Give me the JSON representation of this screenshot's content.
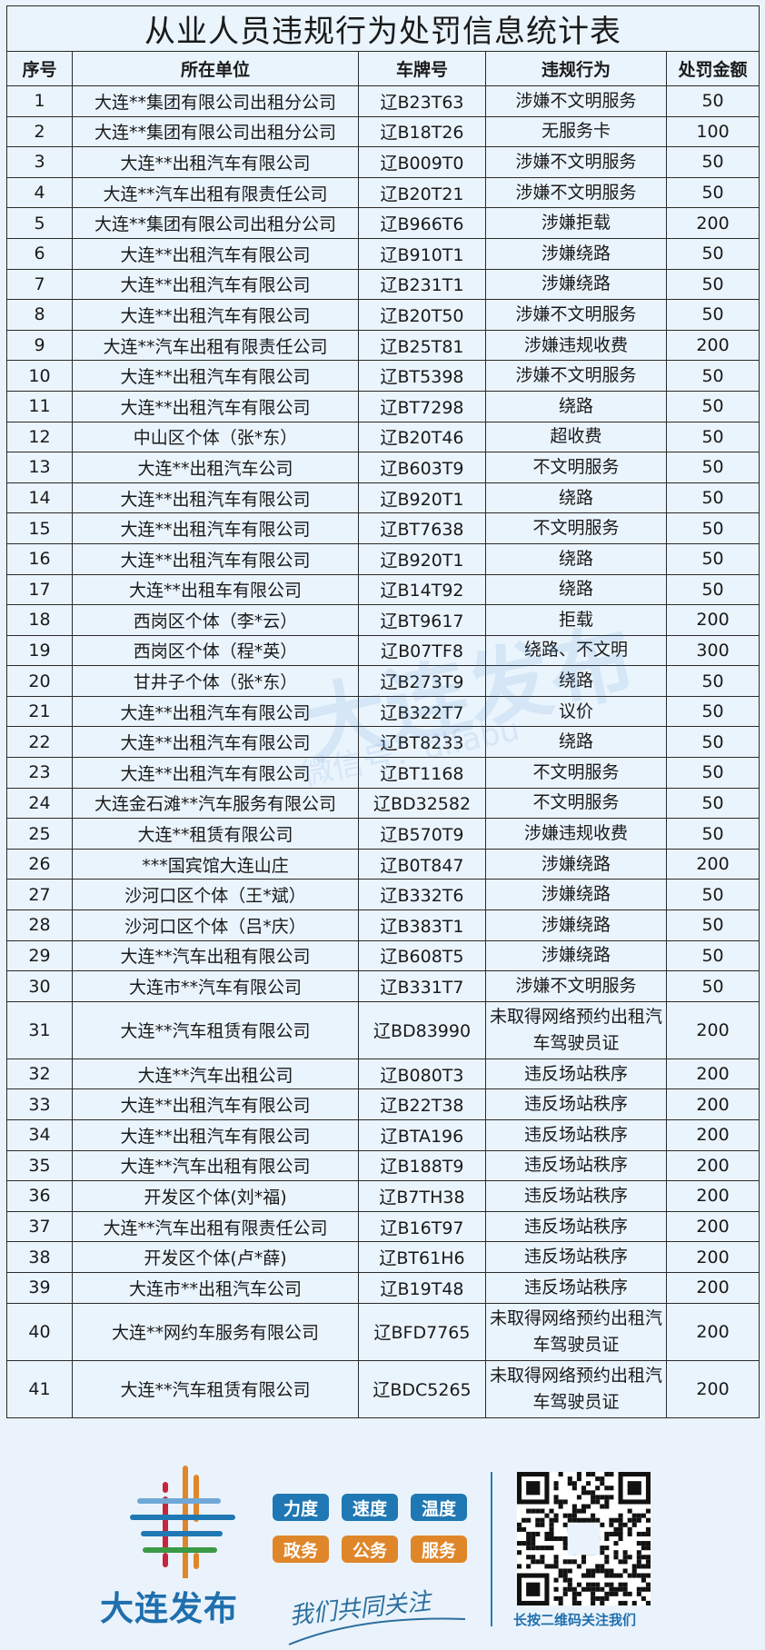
{
  "title": "从业人员违规行为处罚信息统计表",
  "columns": [
    "序号",
    "所在单位",
    "车牌号",
    "违规行为",
    "处罚金额"
  ],
  "rows": [
    [
      "1",
      "大连**集团有限公司出租分公司",
      "辽B23T63",
      "涉嫌不文明服务",
      "50"
    ],
    [
      "2",
      "大连**集团有限公司出租分公司",
      "辽B18T26",
      "无服务卡",
      "100"
    ],
    [
      "3",
      "大连**出租汽车有限公司",
      "辽B009T0",
      "涉嫌不文明服务",
      "50"
    ],
    [
      "4",
      "大连**汽车出租有限责任公司",
      "辽B20T21",
      "涉嫌不文明服务",
      "50"
    ],
    [
      "5",
      "大连**集团有限公司出租分公司",
      "辽B966T6",
      "涉嫌拒载",
      "200"
    ],
    [
      "6",
      "大连**出租汽车有限公司",
      "辽B910T1",
      "涉嫌绕路",
      "50"
    ],
    [
      "7",
      "大连**出租汽车有限公司",
      "辽B231T1",
      "涉嫌绕路",
      "50"
    ],
    [
      "8",
      "大连**出租汽车有限公司",
      "辽B20T50",
      "涉嫌不文明服务",
      "50"
    ],
    [
      "9",
      "大连**汽车出租有限责任公司",
      "辽B25T81",
      "涉嫌违规收费",
      "200"
    ],
    [
      "10",
      "大连**出租汽车有限公司",
      "辽BT5398",
      "涉嫌不文明服务",
      "50"
    ],
    [
      "11",
      "大连**出租汽车有限公司",
      "辽BT7298",
      "绕路",
      "50"
    ],
    [
      "12",
      "中山区个体（张*东）",
      "辽B20T46",
      "超收费",
      "50"
    ],
    [
      "13",
      "大连**出租汽车公司",
      "辽B603T9",
      "不文明服务",
      "50"
    ],
    [
      "14",
      "大连**出租汽车有限公司",
      "辽B920T1",
      "绕路",
      "50"
    ],
    [
      "15",
      "大连**出租汽车有限公司",
      "辽BT7638",
      "不文明服务",
      "50"
    ],
    [
      "16",
      "大连**出租汽车有限公司",
      "辽B920T1",
      "绕路",
      "50"
    ],
    [
      "17",
      "大连**出租车有限公司",
      "辽B14T92",
      "绕路",
      "50"
    ],
    [
      "18",
      "西岗区个体（李*云）",
      "辽BT9617",
      "拒载",
      "200"
    ],
    [
      "19",
      "西岗区个体（程*英）",
      "辽B07TF8",
      "绕路、不文明",
      "300"
    ],
    [
      "20",
      "甘井子个体（张*东）",
      "辽B273T9",
      "绕路",
      "50"
    ],
    [
      "21",
      "大连**出租汽车有限公司",
      "辽B322T7",
      "议价",
      "50"
    ],
    [
      "22",
      "大连**出租汽车有限公司",
      "辽BT8233",
      "绕路",
      "50"
    ],
    [
      "23",
      "大连**出租汽车有限公司",
      "辽BT1168",
      "不文明服务",
      "50"
    ],
    [
      "24",
      "大连金石滩**汽车服务有限公司",
      "辽BD32582",
      "不文明服务",
      "50"
    ],
    [
      "25",
      "大连**租赁有限公司",
      "辽B570T9",
      "涉嫌违规收费",
      "50"
    ],
    [
      "26",
      "***国宾馆大连山庄",
      "辽B0T847",
      "涉嫌绕路",
      "200"
    ],
    [
      "27",
      "沙河口区个体（王*斌）",
      "辽B332T6",
      "涉嫌绕路",
      "50"
    ],
    [
      "28",
      "沙河口区个体（吕*庆）",
      "辽B383T1",
      "涉嫌绕路",
      "50"
    ],
    [
      "29",
      "大连**汽车出租有限公司",
      "辽B608T5",
      "涉嫌绕路",
      "50"
    ],
    [
      "30",
      "大连市**汽车有限公司",
      "辽B331T7",
      "涉嫌不文明服务",
      "50"
    ],
    [
      "31",
      "大连**汽车租赁有限公司",
      "辽BD83990",
      "未取得网络预约出租汽车驾驶员证",
      "200"
    ],
    [
      "32",
      "大连**汽车出租公司",
      "辽B080T3",
      "违反场站秩序",
      "200"
    ],
    [
      "33",
      "大连**出租汽车有限公司",
      "辽B22T38",
      "违反场站秩序",
      "200"
    ],
    [
      "34",
      "大连**出租汽车有限公司",
      "辽BTA196",
      "违反场站秩序",
      "200"
    ],
    [
      "35",
      "大连**汽车出租有限公司",
      "辽B188T9",
      "违反场站秩序",
      "200"
    ],
    [
      "36",
      "开发区个体(刘*福)",
      "辽B7TH38",
      "违反场站秩序",
      "200"
    ],
    [
      "37",
      "大连**汽车出租有限责任公司",
      "辽B16T97",
      "违反场站秩序",
      "200"
    ],
    [
      "38",
      "开发区个体(卢*薛)",
      "辽BT61H6",
      "违反场站秩序",
      "200"
    ],
    [
      "39",
      "大连市**出租汽车公司",
      "辽B19T48",
      "违反场站秩序",
      "200"
    ],
    [
      "40",
      "大连**网约车服务有限公司",
      "辽BFD7765",
      "未取得网络预约出租汽车驾驶员证",
      "200"
    ],
    [
      "41",
      "大连**汽车租赁有限公司",
      "辽BDC5265",
      "未取得网络预约出租汽车驾驶员证",
      "200"
    ]
  ],
  "watermark": {
    "text": "大连发布",
    "sub": "微信号：dlfabu"
  },
  "footer": {
    "brand": "大连发布",
    "badges_blue": [
      "力度",
      "速度",
      "温度"
    ],
    "badges_orange": [
      "政务",
      "公务",
      "服务"
    ],
    "slogan": "我们共同关注",
    "qr_caption": "长按二维码关注我们",
    "qr_center_label": "大连发布"
  },
  "colors": {
    "background": "#eaf3fb",
    "brand_blue": "#1f6fae",
    "badge_blue": "#1f78b4",
    "badge_orange": "#e0862a"
  }
}
